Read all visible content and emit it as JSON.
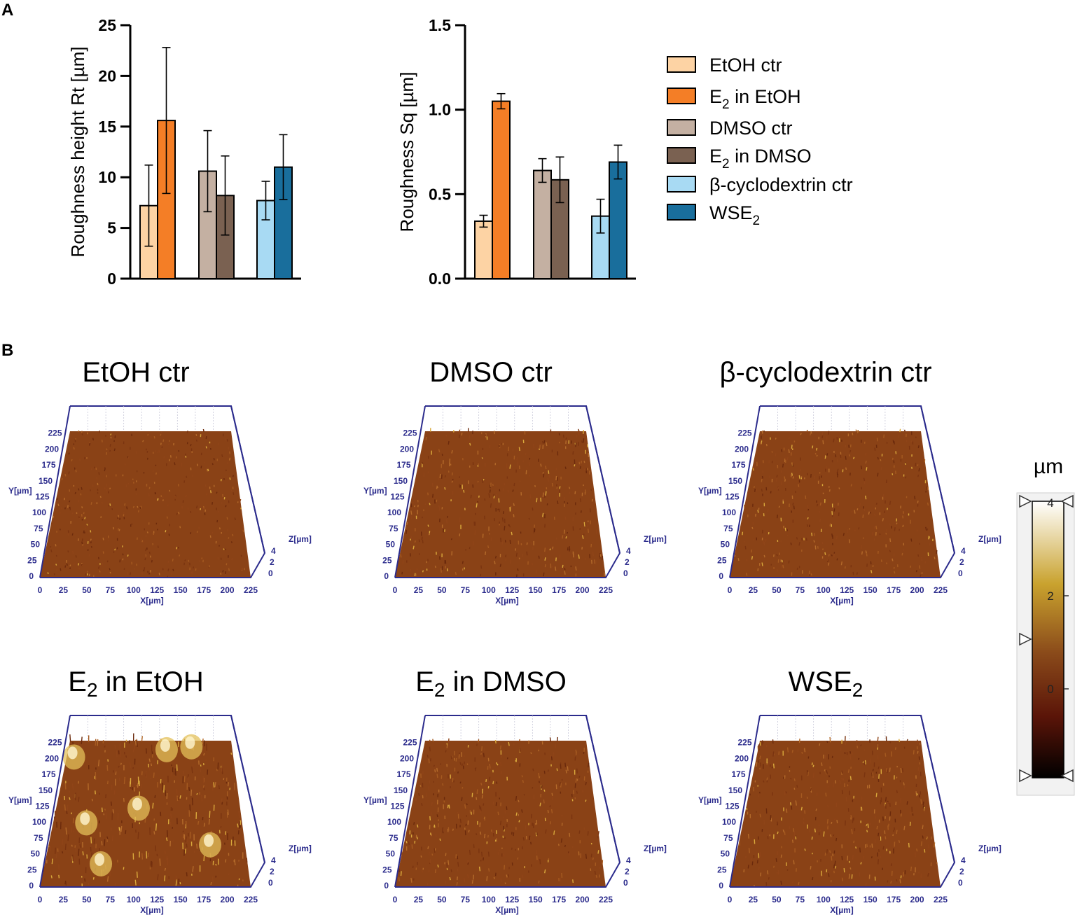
{
  "panels": {
    "a_label": "A",
    "b_label": "B"
  },
  "chart_data": [
    {
      "type": "bar",
      "title": "",
      "ylabel": "Roughness height Rt [µm]",
      "ylim": [
        0,
        25
      ],
      "yticks": [
        "0",
        "5",
        "10",
        "15",
        "20",
        "25"
      ],
      "groups": [
        {
          "bars": [
            {
              "series": "EtOH ctr",
              "value": 7.2,
              "err": 4.0
            },
            {
              "series": "E2 in EtOH",
              "value": 15.6,
              "err": 7.2
            }
          ]
        },
        {
          "bars": [
            {
              "series": "DMSO ctr",
              "value": 10.6,
              "err": 4.0
            },
            {
              "series": "E2 in DMSO",
              "value": 8.2,
              "err": 3.9
            }
          ]
        },
        {
          "bars": [
            {
              "series": "β-cyclodextrin ctr",
              "value": 7.7,
              "err": 1.9
            },
            {
              "series": "WSE2",
              "value": 11.0,
              "err": 3.2
            }
          ]
        }
      ]
    },
    {
      "type": "bar",
      "title": "",
      "ylabel": "Roughness Sq [µm]",
      "ylim": [
        0,
        1.5
      ],
      "yticks": [
        "0.0",
        "0.5",
        "1.0",
        "1.5"
      ],
      "groups": [
        {
          "bars": [
            {
              "series": "EtOH ctr",
              "value": 0.34,
              "err": 0.035
            },
            {
              "series": "E2 in EtOH",
              "value": 1.05,
              "err": 0.045
            }
          ]
        },
        {
          "bars": [
            {
              "series": "DMSO ctr",
              "value": 0.64,
              "err": 0.07
            },
            {
              "series": "E2 in DMSO",
              "value": 0.585,
              "err": 0.135
            }
          ]
        },
        {
          "bars": [
            {
              "series": "β-cyclodextrin ctr",
              "value": 0.37,
              "err": 0.1
            },
            {
              "series": "WSE2",
              "value": 0.69,
              "err": 0.1
            }
          ]
        }
      ]
    }
  ],
  "legend": [
    {
      "series": "EtOH ctr",
      "text": "EtOH ctr",
      "sub": "",
      "after": "",
      "color": "#fdd3a4"
    },
    {
      "series": "E2 in EtOH",
      "text": "E",
      "sub": "2",
      "after": " in EtOH",
      "color": "#f47e26"
    },
    {
      "series": "DMSO ctr",
      "text": "DMSO ctr",
      "sub": "",
      "after": "",
      "color": "#c4b0a2"
    },
    {
      "series": "E2 in DMSO",
      "text": "E",
      "sub": "2",
      "after": " in DMSO",
      "color": "#7a6151"
    },
    {
      "series": "β-cyclodextrin ctr",
      "text": "β-cyclodextrin ctr",
      "sub": "",
      "after": "",
      "color": "#a8daf3"
    },
    {
      "series": "WSE2",
      "text": "WSE",
      "sub": "2",
      "after": "",
      "color": "#196e9c"
    }
  ],
  "surfaces": [
    {
      "title": "EtOH ctr",
      "sub": "",
      "after": "",
      "roughness": 0.2
    },
    {
      "title": "DMSO ctr",
      "sub": "",
      "after": "",
      "roughness": 0.45
    },
    {
      "title": "β-cyclodextrin ctr",
      "sub": "",
      "after": "",
      "roughness": 0.35
    },
    {
      "title": "E",
      "sub": "2",
      "after": " in EtOH",
      "roughness": 0.9
    },
    {
      "title": "E",
      "sub": "2",
      "after": " in DMSO",
      "roughness": 0.5
    },
    {
      "title": "WSE",
      "sub": "2",
      "after": "",
      "roughness": 0.55
    }
  ],
  "surface_axes": {
    "y_label": "Y[µm]",
    "x_label": "X[µm]",
    "z_label": "Z[µm]",
    "y_ticks": [
      "0",
      "25",
      "50",
      "75",
      "100",
      "125",
      "150",
      "175",
      "200",
      "225"
    ],
    "x_ticks": [
      "0",
      "25",
      "50",
      "75",
      "100",
      "125",
      "150",
      "175",
      "200",
      "225"
    ],
    "z_ticks": [
      "0",
      "2",
      "4"
    ]
  },
  "colorbar": {
    "unit": "µm",
    "ticks": [
      "4",
      "2",
      "0"
    ],
    "stops": [
      "#ffffff",
      "#c9a22e",
      "#8a4a1a",
      "#5a1408",
      "#000000"
    ]
  }
}
